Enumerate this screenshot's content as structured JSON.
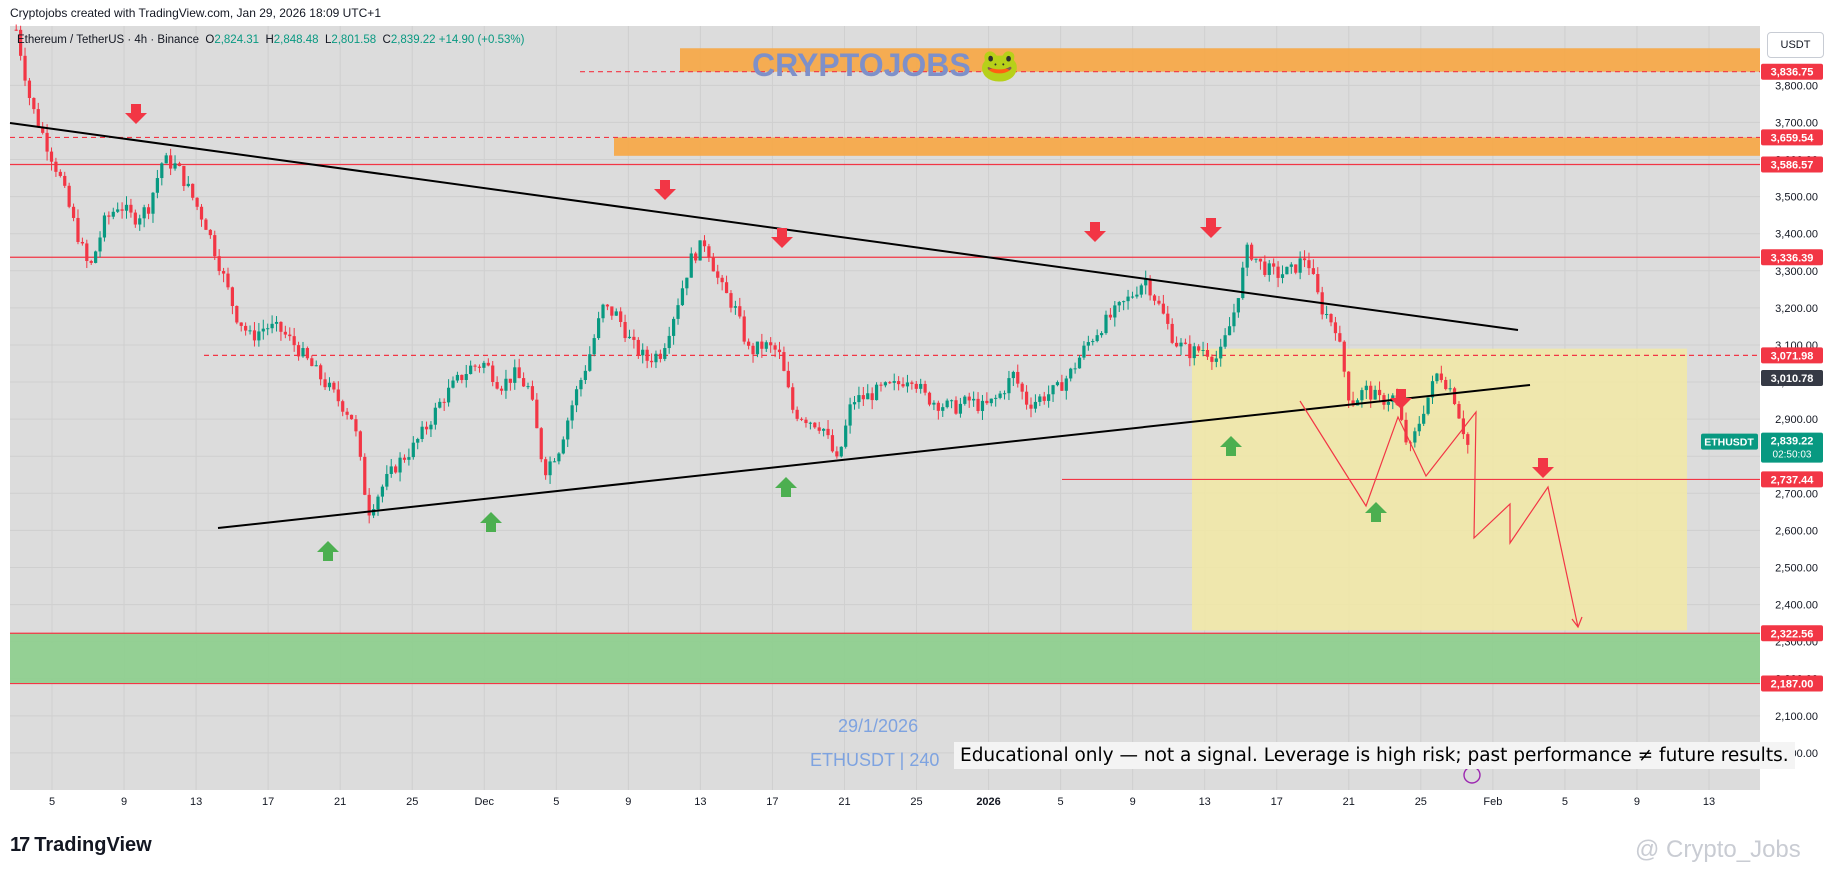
{
  "header": {
    "credit": "Cryptojobs created with TradingView.com, Jan 29, 2026 18:09 UTC+1"
  },
  "symbol": {
    "name": "Ethereum / TetherUS · 4h · Binance",
    "o_label": "O",
    "o": "2,824.31",
    "h_label": "H",
    "h": "2,848.48",
    "l_label": "L",
    "l": "2,801.58",
    "c_label": "C",
    "c": "2,839.22",
    "change": "+14.90 (+0.53%)"
  },
  "currency": "USDT",
  "brand_watermark": "CRYPTOJOBS 🐸",
  "date_watermark": "29/1/2026",
  "symbol_watermark": "ETHUSDT | 240",
  "disclaimer": "Educational only — not a signal. Leverage is high risk; past performance ≠ future results.",
  "footer": {
    "logo": "TradingView",
    "logo_mark": "17",
    "attribution": "@ Crypto_Jobs"
  },
  "colors": {
    "bull": "#089981",
    "bear": "#f23645",
    "level_line": "#f23645",
    "supply_zone": "#f5a94a",
    "demand_zone": "#8fcf8f",
    "projection_box": "#f2e9a4",
    "trendline": "#000000",
    "arrow_up": "#4caf50",
    "arrow_down": "#f23645"
  },
  "chart_data": {
    "type": "candlestick",
    "symbol": "ETHUSDT",
    "timeframe": "4h",
    "y_axis": {
      "range": [
        1900,
        3960
      ],
      "ticks": [
        "2,000.00",
        "2,100.00",
        "2,200.00",
        "2,300.00",
        "2,400.00",
        "2,500.00",
        "2,600.00",
        "2,700.00",
        "2,800.00",
        "2,900.00",
        "3,000.00",
        "3,100.00",
        "3,200.00",
        "3,300.00",
        "3,400.00",
        "3,500.00",
        "3,600.00",
        "3,700.00",
        "3,800.00"
      ]
    },
    "x_axis": {
      "ticks": [
        "5",
        "9",
        "13",
        "17",
        "21",
        "25",
        "Dec",
        "5",
        "9",
        "13",
        "17",
        "21",
        "25",
        "2026",
        "5",
        "9",
        "13",
        "17",
        "21",
        "25",
        "Feb",
        "5",
        "9",
        "13"
      ]
    },
    "price_levels": [
      {
        "value": 3836.75,
        "label": "3,836.75",
        "style": "dashed"
      },
      {
        "value": 3659.54,
        "label": "3,659.54",
        "style": "dashed"
      },
      {
        "value": 3586.57,
        "label": "3,586.57",
        "style": "solid"
      },
      {
        "value": 3336.39,
        "label": "3,336.39",
        "style": "solid"
      },
      {
        "value": 3071.98,
        "label": "3,071.98",
        "style": "dashed"
      },
      {
        "value": 2737.44,
        "label": "2,737.44",
        "style": "solid"
      },
      {
        "value": 2322.56,
        "label": "2,322.56",
        "style": "solid"
      },
      {
        "value": 2187.0,
        "label": "2,187.00",
        "style": "solid"
      }
    ],
    "dark_label": {
      "value": 3010.78,
      "label": "3,010.78"
    },
    "current_price": {
      "value": 2839.22,
      "label": "2,839.22",
      "countdown": "02:50:03",
      "symbol_tag": "ETHUSDT"
    },
    "zones": [
      {
        "name": "supply-upper",
        "from": 3836.75,
        "to": 3900
      },
      {
        "name": "supply-lower",
        "from": 3610,
        "to": 3659.54
      },
      {
        "name": "demand",
        "from": 2187,
        "to": 2322.56
      }
    ],
    "close_path": [
      [
        0,
        3950
      ],
      [
        1,
        3750
      ],
      [
        2,
        3650
      ],
      [
        3,
        3550
      ],
      [
        4,
        3420
      ],
      [
        5,
        3300
      ],
      [
        6,
        3430
      ],
      [
        7,
        3480
      ],
      [
        8,
        3440
      ],
      [
        9,
        3470
      ],
      [
        10,
        3600
      ],
      [
        11,
        3580
      ],
      [
        12,
        3500
      ],
      [
        13,
        3420
      ],
      [
        14,
        3300
      ],
      [
        15,
        3180
      ],
      [
        16,
        3120
      ],
      [
        17,
        3150
      ],
      [
        18,
        3140
      ],
      [
        19,
        3100
      ],
      [
        20,
        3050
      ],
      [
        21,
        3000
      ],
      [
        22,
        2950
      ],
      [
        23,
        2900
      ],
      [
        24,
        2650
      ],
      [
        25,
        2720
      ],
      [
        26,
        2780
      ],
      [
        27,
        2820
      ],
      [
        28,
        2880
      ],
      [
        29,
        2950
      ],
      [
        30,
        3000
      ],
      [
        31,
        3040
      ],
      [
        32,
        3050
      ],
      [
        33,
        2990
      ],
      [
        34,
        3020
      ],
      [
        35,
        2980
      ],
      [
        36,
        2760
      ],
      [
        37,
        2820
      ],
      [
        38,
        2950
      ],
      [
        39,
        3060
      ],
      [
        40,
        3200
      ],
      [
        41,
        3180
      ],
      [
        42,
        3100
      ],
      [
        43,
        3060
      ],
      [
        44,
        3080
      ],
      [
        45,
        3200
      ],
      [
        46,
        3330
      ],
      [
        47,
        3380
      ],
      [
        48,
        3260
      ],
      [
        49,
        3200
      ],
      [
        50,
        3080
      ],
      [
        51,
        3100
      ],
      [
        52,
        3080
      ],
      [
        53,
        2920
      ],
      [
        54,
        2900
      ],
      [
        55,
        2880
      ],
      [
        56,
        2780
      ],
      [
        57,
        2950
      ],
      [
        58,
        2960
      ],
      [
        59,
        2980
      ],
      [
        60,
        2990
      ],
      [
        61,
        3020
      ],
      [
        62,
        2960
      ],
      [
        63,
        2940
      ],
      [
        64,
        2930
      ],
      [
        65,
        2950
      ],
      [
        66,
        2930
      ],
      [
        67,
        2960
      ],
      [
        68,
        3020
      ],
      [
        69,
        2940
      ],
      [
        70,
        2960
      ],
      [
        71,
        2980
      ],
      [
        72,
        3030
      ],
      [
        73,
        3100
      ],
      [
        74,
        3150
      ],
      [
        75,
        3190
      ],
      [
        76,
        3230
      ],
      [
        77,
        3280
      ],
      [
        78,
        3200
      ],
      [
        79,
        3110
      ],
      [
        80,
        3080
      ],
      [
        81,
        3090
      ],
      [
        82,
        3060
      ],
      [
        83,
        3180
      ],
      [
        84,
        3360
      ],
      [
        85,
        3310
      ],
      [
        86,
        3290
      ],
      [
        87,
        3300
      ],
      [
        88,
        3340
      ],
      [
        89,
        3200
      ],
      [
        90,
        3150
      ],
      [
        91,
        2940
      ],
      [
        92,
        2980
      ],
      [
        93,
        2950
      ],
      [
        94,
        2960
      ],
      [
        95,
        2810
      ],
      [
        96,
        2930
      ],
      [
        97,
        3030
      ],
      [
        98,
        2970
      ],
      [
        99,
        2830
      ]
    ],
    "trendlines": [
      {
        "name": "descending-resistance"
      },
      {
        "name": "ascending-support"
      },
      {
        "name": "short-ascending"
      }
    ],
    "projection": "zig-zag path down to ~2,322"
  }
}
